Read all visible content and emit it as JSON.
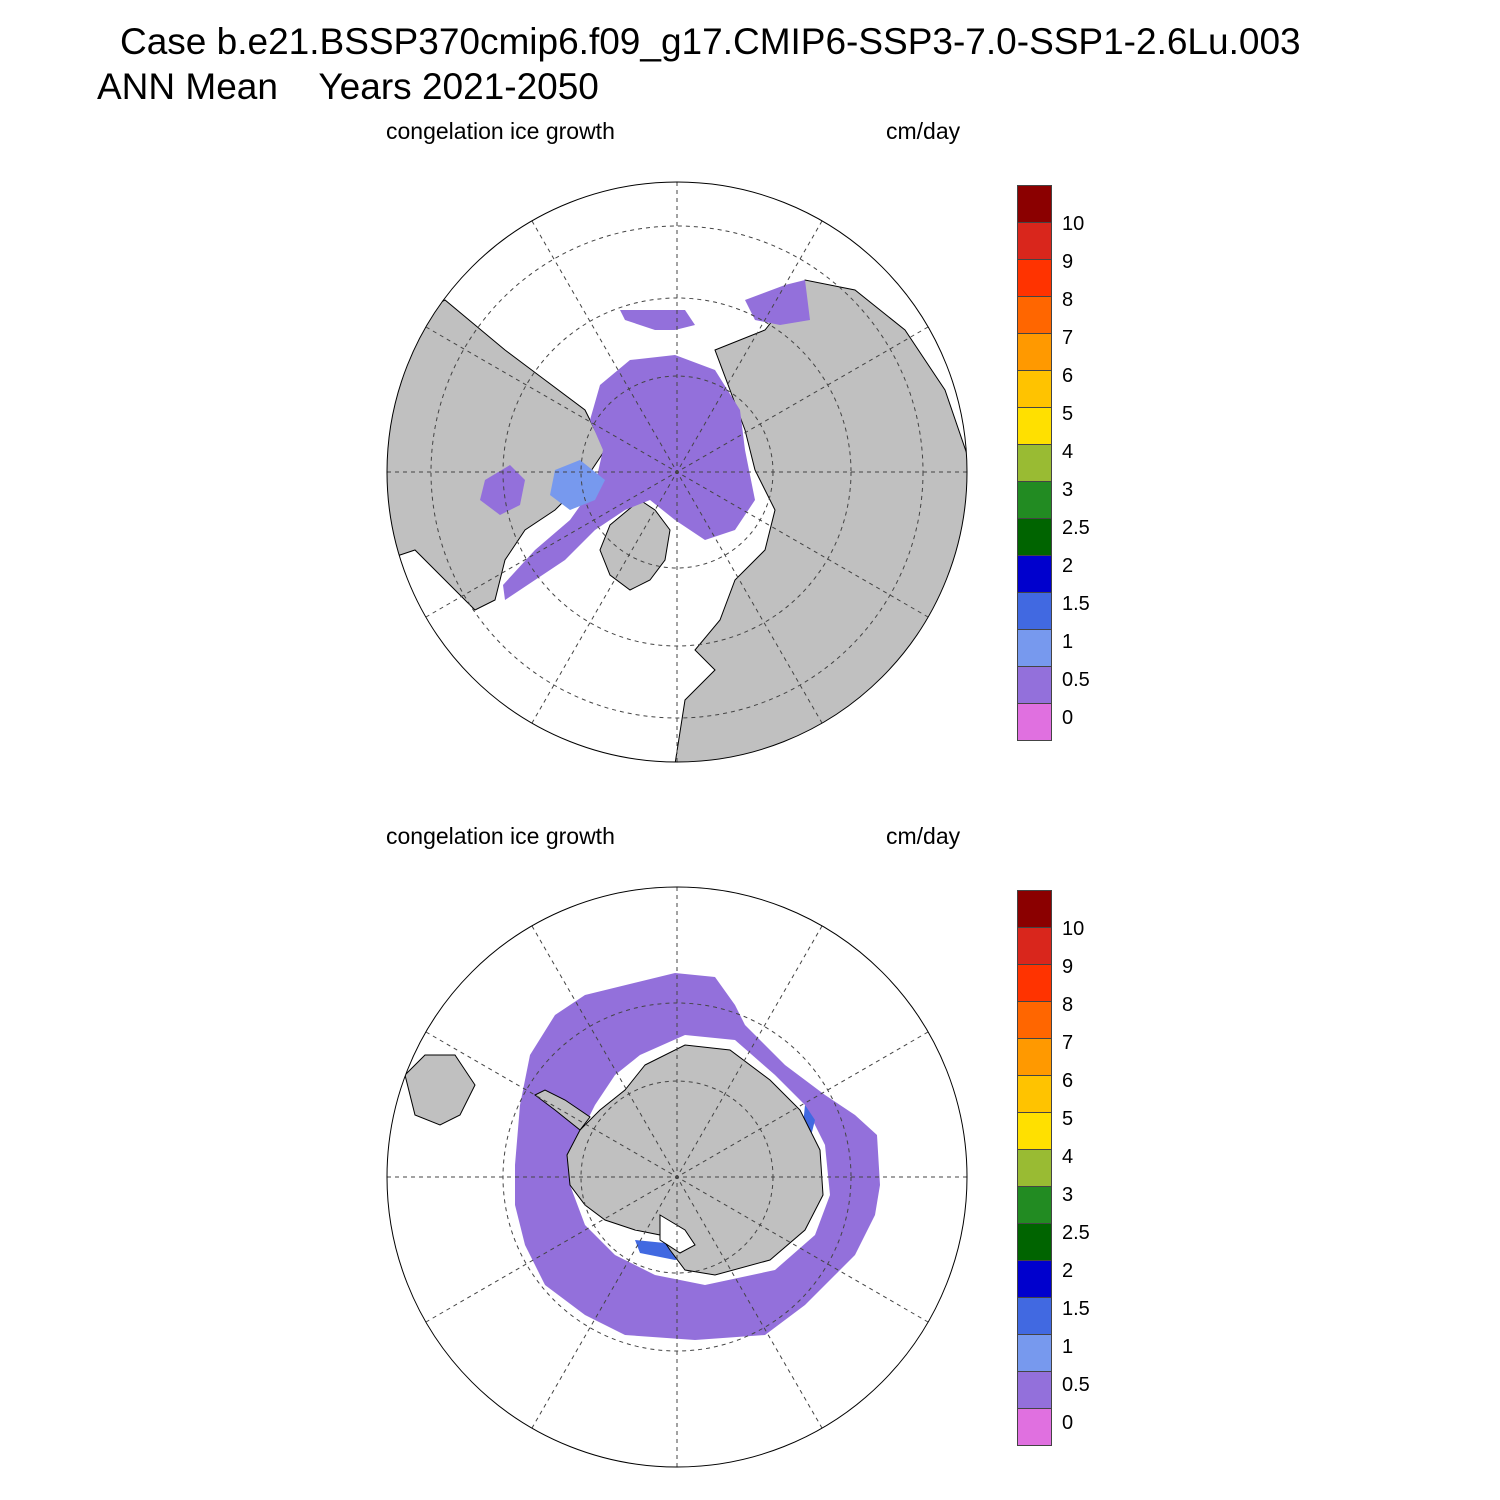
{
  "title": {
    "line1": "Case b.e21.BSSP370cmip6.f09_g17.CMIP6-SSP3-7.0-SSP1-2.6Lu.003",
    "line2": "ANN Mean    Years 2021-2050"
  },
  "panels": [
    {
      "hemisphere": "north",
      "label_left": "congelation ice growth",
      "label_right": "cm/day"
    },
    {
      "hemisphere": "south",
      "label_left": "congelation ice growth",
      "label_right": "cm/day"
    }
  ],
  "colorbar": {
    "tick_labels": [
      "10",
      "9",
      "8",
      "7",
      "6",
      "5",
      "4",
      "3",
      "2.5",
      "2",
      "1.5",
      "1",
      "0.5",
      "0"
    ],
    "colors": [
      "#8b0000",
      "#d9261c",
      "#ff3300",
      "#ff6600",
      "#ff9900",
      "#ffc300",
      "#ffe000",
      "#99bb33",
      "#228b22",
      "#006400",
      "#0000cd",
      "#4169e1",
      "#7799ee",
      "#9370db",
      "#e070e0"
    ]
  },
  "colors": {
    "land": "#c0c0c0",
    "ice_low": "#9370db",
    "ice_mid": "#7799ee",
    "ice_high": "#4169e1",
    "ice_max": "#0000cd",
    "ocean": "#ffffff"
  }
}
